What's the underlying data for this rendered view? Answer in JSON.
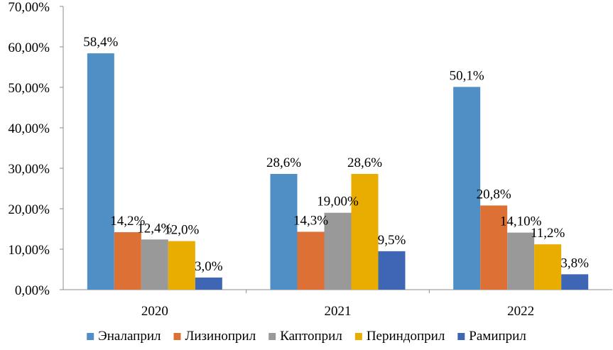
{
  "chart_data": {
    "type": "bar",
    "categories": [
      "2020",
      "2021",
      "2022"
    ],
    "series": [
      {
        "name": "Эналаприл",
        "color": "#4f8fc6",
        "values": [
          58.4,
          28.6,
          50.1
        ],
        "labels": [
          "58,4%",
          "28,6%",
          "50,1%"
        ]
      },
      {
        "name": "Лизиноприл",
        "color": "#dd7135",
        "values": [
          14.2,
          14.3,
          20.8
        ],
        "labels": [
          "14,2%",
          "14,3%",
          "20,8%"
        ]
      },
      {
        "name": "Каптоприл",
        "color": "#999999",
        "values": [
          12.4,
          19.0,
          14.1
        ],
        "labels": [
          "12,4%",
          "19,00%",
          "14,10%"
        ]
      },
      {
        "name": "Периндоприл",
        "color": "#e8ad00",
        "values": [
          12.0,
          28.6,
          11.2
        ],
        "labels": [
          "12,0%",
          "28,6%",
          "11,2%"
        ]
      },
      {
        "name": "Рамиприл",
        "color": "#3f66b5",
        "values": [
          3.0,
          9.5,
          3.8
        ],
        "labels": [
          "3,0%",
          "9,5%",
          "3,8%"
        ]
      }
    ],
    "ylim": [
      0,
      70
    ],
    "y_ticks": [
      0,
      10,
      20,
      30,
      40,
      50,
      60,
      70
    ],
    "y_tick_labels": [
      "0,00%",
      "10,00%",
      "20,00%",
      "30,00%",
      "40,00%",
      "50,00%",
      "60,00%",
      "70,00%"
    ],
    "grid": false,
    "legend_position": "bottom"
  }
}
